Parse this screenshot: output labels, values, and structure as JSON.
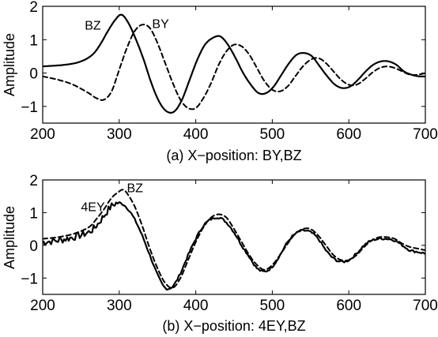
{
  "chart_data": [
    {
      "type": "line",
      "caption": "(a) X−position: BY,BZ",
      "xlabel": "",
      "ylabel": "Amplitude",
      "xlim": [
        200,
        700
      ],
      "ylim": [
        -1.5,
        2
      ],
      "xticks": [
        200,
        300,
        400,
        500,
        600,
        700
      ],
      "yticks": [
        -1,
        0,
        1,
        2
      ],
      "annotations": [
        {
          "text": "BZ",
          "x": 255,
          "y": 1.3
        },
        {
          "text": "BY",
          "x": 343,
          "y": 1.35
        }
      ],
      "series": [
        {
          "label": "BZ",
          "style": "solid",
          "x": [
            200,
            230,
            250,
            265,
            275,
            285,
            295,
            303,
            312,
            322,
            332,
            342,
            352,
            362,
            372,
            382,
            392,
            402,
            412,
            422,
            432,
            442,
            452,
            462,
            472,
            482,
            492,
            502,
            512,
            522,
            532,
            542,
            552,
            562,
            572,
            582,
            592,
            602,
            612,
            622,
            632,
            642,
            652,
            662,
            672,
            682,
            692,
            700
          ],
          "y": [
            0.2,
            0.25,
            0.35,
            0.55,
            0.85,
            1.25,
            1.6,
            1.75,
            1.5,
            1.0,
            0.4,
            -0.3,
            -0.85,
            -1.15,
            -1.15,
            -0.8,
            -0.2,
            0.4,
            0.85,
            1.05,
            1.1,
            0.85,
            0.45,
            0.0,
            -0.35,
            -0.6,
            -0.6,
            -0.4,
            -0.05,
            0.3,
            0.55,
            0.6,
            0.5,
            0.2,
            -0.1,
            -0.35,
            -0.45,
            -0.4,
            -0.2,
            0.05,
            0.25,
            0.35,
            0.35,
            0.25,
            0.05,
            -0.05,
            -0.1,
            -0.1
          ]
        },
        {
          "label": "BY",
          "style": "dashed",
          "x": [
            200,
            220,
            240,
            260,
            270,
            280,
            290,
            300,
            310,
            320,
            330,
            340,
            350,
            360,
            370,
            380,
            390,
            400,
            410,
            420,
            430,
            440,
            450,
            460,
            470,
            480,
            490,
            500,
            510,
            520,
            530,
            540,
            550,
            560,
            570,
            580,
            590,
            600,
            610,
            620,
            630,
            640,
            650,
            660,
            670,
            680,
            690,
            700
          ],
          "y": [
            -0.1,
            -0.2,
            -0.35,
            -0.6,
            -0.75,
            -0.8,
            -0.55,
            0.1,
            0.75,
            1.25,
            1.45,
            1.35,
            0.9,
            0.3,
            -0.3,
            -0.8,
            -1.05,
            -1.05,
            -0.75,
            -0.3,
            0.25,
            0.65,
            0.85,
            0.8,
            0.55,
            0.15,
            -0.25,
            -0.5,
            -0.55,
            -0.4,
            -0.1,
            0.2,
            0.4,
            0.45,
            0.3,
            0.05,
            -0.2,
            -0.35,
            -0.35,
            -0.2,
            0.0,
            0.15,
            0.2,
            0.15,
            0.05,
            -0.05,
            -0.05,
            0.0
          ]
        }
      ]
    },
    {
      "type": "line",
      "caption": "(b) X−position: 4EY,BZ",
      "xlabel": "",
      "ylabel": "Amplitude",
      "xlim": [
        200,
        700
      ],
      "ylim": [
        -1.5,
        2
      ],
      "xticks": [
        200,
        300,
        400,
        500,
        600,
        700
      ],
      "yticks": [
        -1,
        0,
        1,
        2
      ],
      "annotations": [
        {
          "text": "BZ",
          "x": 310,
          "y": 1.62
        },
        {
          "text": "4EY",
          "x": 250,
          "y": 1.05
        }
      ],
      "series": [
        {
          "label": "4EY",
          "style": "solid",
          "noisy": true,
          "x": [
            200,
            220,
            240,
            260,
            270,
            280,
            290,
            300,
            310,
            320,
            330,
            340,
            350,
            360,
            370,
            380,
            390,
            400,
            410,
            420,
            430,
            440,
            450,
            460,
            470,
            480,
            490,
            500,
            510,
            520,
            530,
            540,
            550,
            560,
            570,
            580,
            590,
            600,
            610,
            620,
            630,
            640,
            650,
            660,
            670,
            680,
            690,
            700
          ],
          "y": [
            0.1,
            0.15,
            0.25,
            0.4,
            0.6,
            0.9,
            1.2,
            1.3,
            1.15,
            0.8,
            0.3,
            -0.3,
            -0.9,
            -1.3,
            -1.25,
            -0.85,
            -0.3,
            0.2,
            0.6,
            0.8,
            0.85,
            0.7,
            0.4,
            0.0,
            -0.35,
            -0.7,
            -0.8,
            -0.65,
            -0.3,
            0.1,
            0.35,
            0.45,
            0.4,
            0.2,
            -0.15,
            -0.4,
            -0.5,
            -0.45,
            -0.25,
            0.0,
            0.15,
            0.2,
            0.2,
            0.15,
            0.0,
            -0.15,
            -0.2,
            -0.25
          ]
        },
        {
          "label": "BZ",
          "style": "dashed",
          "noisy": false,
          "x": [
            200,
            220,
            240,
            260,
            270,
            280,
            290,
            300,
            305,
            310,
            320,
            330,
            340,
            350,
            360,
            370,
            380,
            390,
            400,
            410,
            420,
            430,
            440,
            450,
            460,
            470,
            480,
            490,
            500,
            510,
            520,
            530,
            540,
            550,
            560,
            570,
            580,
            590,
            600,
            610,
            620,
            630,
            640,
            650,
            660,
            670,
            680,
            690,
            700
          ],
          "y": [
            0.2,
            0.25,
            0.35,
            0.55,
            0.8,
            1.1,
            1.45,
            1.65,
            1.7,
            1.6,
            1.2,
            0.6,
            -0.1,
            -0.7,
            -1.15,
            -1.3,
            -1.0,
            -0.45,
            0.1,
            0.55,
            0.85,
            0.95,
            0.85,
            0.5,
            0.1,
            -0.3,
            -0.6,
            -0.75,
            -0.6,
            -0.3,
            0.05,
            0.35,
            0.5,
            0.5,
            0.3,
            0.0,
            -0.3,
            -0.45,
            -0.45,
            -0.3,
            -0.05,
            0.15,
            0.25,
            0.25,
            0.2,
            0.05,
            -0.05,
            -0.1,
            -0.15
          ]
        }
      ]
    }
  ]
}
